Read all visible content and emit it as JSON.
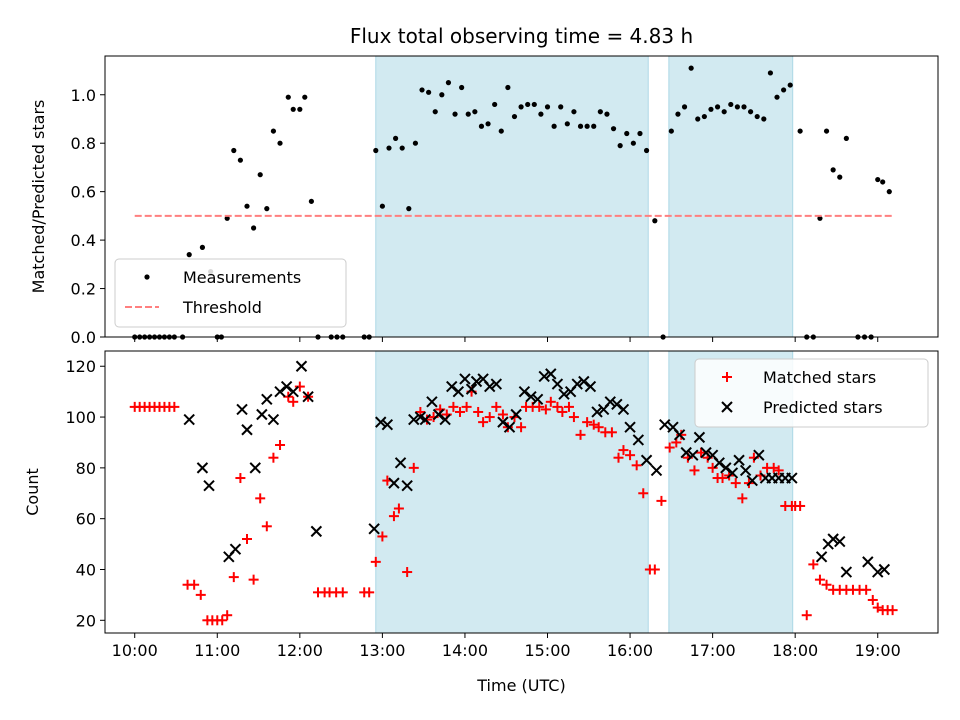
{
  "chart_data": [
    {
      "type": "scatter",
      "title": "Flux total observing time = 4.83 h",
      "ylabel": "Matched/Predicted stars",
      "xlim": [
        9.64,
        19.73
      ],
      "ylim": [
        0,
        1.16
      ],
      "xticks": [
        "10:00",
        "11:00",
        "12:00",
        "13:00",
        "14:00",
        "15:00",
        "16:00",
        "17:00",
        "18:00",
        "19:00"
      ],
      "yticks": [
        0.0,
        0.2,
        0.4,
        0.6,
        0.8,
        1.0
      ],
      "ytick_labels": [
        "0.0",
        "0.2",
        "0.4",
        "0.6",
        "0.8",
        "1.0"
      ],
      "shaded_intervals": [
        [
          12.92,
          16.22
        ],
        [
          16.47,
          17.97
        ]
      ],
      "shade_color": "#add8e6",
      "legend_position": "lower-left",
      "series": [
        {
          "name": "Measurements",
          "marker": "dot",
          "color": "#000000",
          "x": [
            10.0,
            10.06,
            10.12,
            10.18,
            10.24,
            10.3,
            10.36,
            10.42,
            10.48,
            10.58,
            10.66,
            10.82,
            10.92,
            11.0,
            11.05,
            11.12,
            11.2,
            11.28,
            11.36,
            11.44,
            11.52,
            11.6,
            11.68,
            11.76,
            11.86,
            11.92,
            12.0,
            12.06,
            12.14,
            12.22,
            12.38,
            12.45,
            12.52,
            12.78,
            12.84,
            12.92,
            13.0,
            13.08,
            13.16,
            13.24,
            13.32,
            13.4,
            13.48,
            13.56,
            13.64,
            13.72,
            13.8,
            13.88,
            13.96,
            14.04,
            14.12,
            14.2,
            14.28,
            14.36,
            14.44,
            14.52,
            14.6,
            14.68,
            14.76,
            14.84,
            14.92,
            15.0,
            15.08,
            15.16,
            15.24,
            15.32,
            15.4,
            15.48,
            15.56,
            15.64,
            15.72,
            15.8,
            15.88,
            15.96,
            16.04,
            16.12,
            16.2,
            16.3,
            16.4,
            16.5,
            16.58,
            16.66,
            16.74,
            16.82,
            16.9,
            16.98,
            17.06,
            17.14,
            17.22,
            17.3,
            17.38,
            17.46,
            17.54,
            17.62,
            17.7,
            17.78,
            17.86,
            17.94,
            18.06,
            18.14,
            18.22,
            18.3,
            18.38,
            18.46,
            18.54,
            18.62,
            18.76,
            18.84,
            18.92,
            19.0,
            19.06,
            19.14
          ],
          "y": [
            0.0,
            0.0,
            0.0,
            0.0,
            0.0,
            0.0,
            0.0,
            0.0,
            0.0,
            0.0,
            0.34,
            0.37,
            0.27,
            0.0,
            0.0,
            0.49,
            0.77,
            0.73,
            0.54,
            0.45,
            0.67,
            0.53,
            0.85,
            0.8,
            0.99,
            0.94,
            0.94,
            0.99,
            0.56,
            0.0,
            0.0,
            0.0,
            0.0,
            0.0,
            0.0,
            0.77,
            0.54,
            0.78,
            0.82,
            0.78,
            0.53,
            0.8,
            1.02,
            1.01,
            0.93,
            1.0,
            1.05,
            0.92,
            1.03,
            0.92,
            0.93,
            0.87,
            0.88,
            0.96,
            0.85,
            1.03,
            0.91,
            0.95,
            0.96,
            0.96,
            0.92,
            0.95,
            0.87,
            0.95,
            0.88,
            0.93,
            0.87,
            0.87,
            0.87,
            0.93,
            0.92,
            0.86,
            0.79,
            0.84,
            0.8,
            0.84,
            0.77,
            0.48,
            0.0,
            0.85,
            0.92,
            0.95,
            1.11,
            0.9,
            0.91,
            0.94,
            0.95,
            0.93,
            0.96,
            0.95,
            0.95,
            0.93,
            0.91,
            0.9,
            1.09,
            0.99,
            1.02,
            1.04,
            0.85,
            0.0,
            0.0,
            0.49,
            0.85,
            0.69,
            0.66,
            0.82,
            0.0,
            0.0,
            0.0,
            0.65,
            0.64,
            0.6
          ]
        },
        {
          "name": "Threshold",
          "marker": "dashed-line",
          "color": "#ff7f7f",
          "x": [
            10.0,
            19.18
          ],
          "y": [
            0.5,
            0.5
          ]
        }
      ]
    },
    {
      "type": "scatter",
      "xlabel": "Time (UTC)",
      "ylabel": "Count",
      "xlim": [
        9.64,
        19.73
      ],
      "ylim": [
        15,
        126
      ],
      "xticks": [
        "10:00",
        "11:00",
        "12:00",
        "13:00",
        "14:00",
        "15:00",
        "16:00",
        "17:00",
        "18:00",
        "19:00"
      ],
      "yticks": [
        20,
        40,
        60,
        80,
        100,
        120
      ],
      "shaded_intervals": [
        [
          12.92,
          16.22
        ],
        [
          16.47,
          17.97
        ]
      ],
      "shade_color": "#add8e6",
      "legend_position": "upper-right",
      "series": [
        {
          "name": "Matched stars",
          "marker": "plus",
          "color": "#ff0000",
          "x": [
            10.0,
            10.06,
            10.12,
            10.18,
            10.24,
            10.3,
            10.36,
            10.42,
            10.48,
            10.64,
            10.72,
            10.8,
            10.88,
            10.94,
            11.0,
            11.06,
            11.12,
            11.2,
            11.28,
            11.36,
            11.44,
            11.52,
            11.6,
            11.68,
            11.76,
            11.86,
            11.92,
            12.0,
            12.1,
            12.22,
            12.3,
            12.36,
            12.44,
            12.52,
            12.78,
            12.84,
            12.92,
            13.0,
            13.06,
            13.14,
            13.2,
            13.3,
            13.38,
            13.46,
            13.54,
            13.62,
            13.7,
            13.78,
            13.86,
            13.94,
            14.02,
            14.08,
            14.16,
            14.22,
            14.3,
            14.38,
            14.46,
            14.52,
            14.6,
            14.68,
            14.74,
            14.82,
            14.9,
            14.98,
            15.04,
            15.12,
            15.18,
            15.26,
            15.32,
            15.4,
            15.48,
            15.56,
            15.62,
            15.7,
            15.78,
            15.86,
            15.92,
            16.0,
            16.08,
            16.16,
            16.24,
            16.3,
            16.38,
            16.48,
            16.56,
            16.62,
            16.7,
            16.78,
            16.86,
            16.94,
            17.0,
            17.06,
            17.12,
            17.2,
            17.28,
            17.36,
            17.44,
            17.5,
            17.58,
            17.66,
            17.74,
            17.8,
            17.88,
            17.96,
            18.0,
            18.06,
            18.14,
            18.22,
            18.3,
            18.38,
            18.46,
            18.54,
            18.62,
            18.7,
            18.78,
            18.86,
            18.94,
            19.0,
            19.06,
            19.12,
            19.18
          ],
          "y": [
            104,
            104,
            104,
            104,
            104,
            104,
            104,
            104,
            104,
            34,
            34,
            30,
            20,
            20,
            20,
            20,
            22,
            37,
            76,
            52,
            36,
            68,
            57,
            84,
            89,
            108,
            106,
            112,
            108,
            31,
            31,
            31,
            31,
            31,
            31,
            31,
            43,
            53,
            75,
            61,
            64,
            39,
            80,
            102,
            99,
            100,
            103,
            101,
            104,
            102,
            104,
            110,
            102,
            98,
            100,
            104,
            101,
            96,
            100,
            96,
            104,
            104,
            104,
            103,
            106,
            104,
            102,
            104,
            100,
            93,
            98,
            97,
            96,
            94,
            94,
            84,
            87,
            85,
            81,
            70,
            40,
            40,
            67,
            88,
            90,
            93,
            84,
            79,
            86,
            84,
            80,
            76,
            76,
            77,
            74,
            68,
            74,
            84,
            77,
            80,
            80,
            79,
            65,
            65,
            65,
            65,
            22,
            42,
            36,
            34,
            32,
            32,
            32,
            32,
            32,
            32,
            28,
            25,
            24,
            24,
            24
          ],
          "y_note": ""
        },
        {
          "name": "Predicted stars",
          "marker": "x",
          "color": "#000000",
          "x": [
            10.66,
            10.82,
            10.9,
            11.14,
            11.22,
            11.3,
            11.36,
            11.46,
            11.54,
            11.6,
            11.68,
            11.76,
            11.84,
            11.92,
            12.02,
            12.1,
            12.2,
            12.9,
            12.98,
            13.06,
            13.14,
            13.22,
            13.3,
            13.38,
            13.46,
            13.52,
            13.6,
            13.68,
            13.76,
            13.84,
            13.92,
            14.0,
            14.08,
            14.14,
            14.22,
            14.3,
            14.38,
            14.46,
            14.54,
            14.62,
            14.72,
            14.8,
            14.88,
            14.96,
            15.04,
            15.12,
            15.2,
            15.28,
            15.36,
            15.44,
            15.52,
            15.6,
            15.68,
            15.76,
            15.84,
            15.92,
            16.0,
            16.1,
            16.2,
            16.32,
            16.42,
            16.52,
            16.6,
            16.68,
            16.76,
            16.84,
            16.92,
            17.0,
            17.08,
            17.16,
            17.24,
            17.32,
            17.4,
            17.48,
            17.56,
            17.64,
            17.72,
            17.8,
            17.88,
            17.96,
            18.32,
            18.4,
            18.46,
            18.54,
            18.62,
            18.88,
            19.0,
            19.08
          ],
          "y": [
            99,
            80,
            73,
            45,
            48,
            103,
            95,
            80,
            101,
            107,
            99,
            110,
            112,
            110,
            120,
            108,
            55,
            56,
            98,
            97,
            74,
            82,
            73,
            99,
            100,
            99,
            106,
            101,
            99,
            112,
            110,
            115,
            111,
            114,
            115,
            112,
            113,
            98,
            96,
            101,
            110,
            108,
            107,
            116,
            117,
            113,
            109,
            110,
            113,
            114,
            112,
            102,
            103,
            106,
            105,
            103,
            96,
            91,
            83,
            79,
            97,
            96,
            93,
            86,
            85,
            92,
            86,
            85,
            82,
            80,
            78,
            83,
            79,
            75,
            85,
            76,
            76,
            76,
            76,
            76,
            45,
            50,
            52,
            51,
            39,
            43,
            39,
            40
          ]
        }
      ]
    }
  ]
}
